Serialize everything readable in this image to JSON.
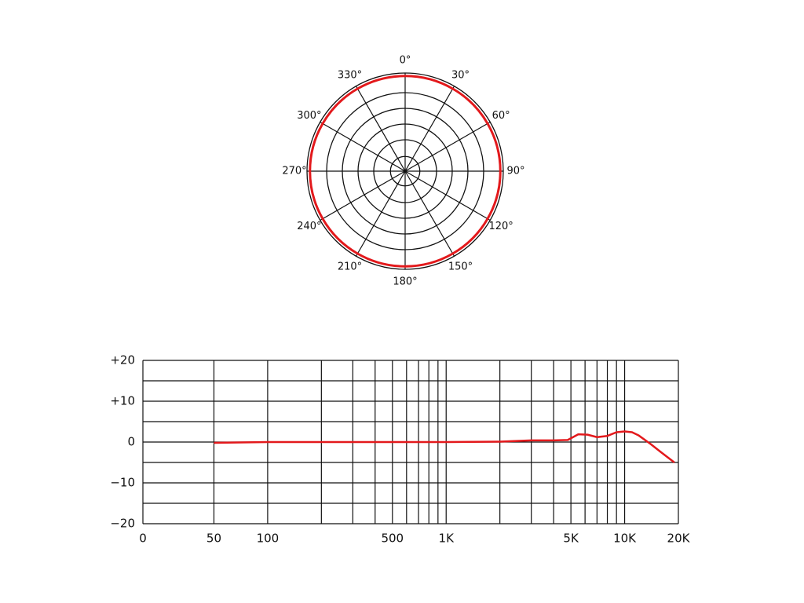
{
  "chart_data": [
    {
      "type": "polar",
      "theta": [
        0,
        30,
        60,
        90,
        120,
        150,
        180,
        210,
        240,
        270,
        300,
        330
      ],
      "series": [
        {
          "color": "#e3191c",
          "values": [
            0.97,
            0.97,
            0.97,
            0.97,
            0.97,
            0.97,
            0.97,
            0.97,
            0.97,
            0.97,
            0.97,
            0.97
          ]
        }
      ],
      "rlim": [
        0,
        1
      ],
      "rticks": [
        0.15,
        0.32,
        0.48,
        0.64,
        0.8,
        1
      ],
      "thetaticks": [
        {
          "value": 0,
          "label": "0°"
        },
        {
          "value": 30,
          "label": "30°"
        },
        {
          "value": 60,
          "label": "60°"
        },
        {
          "value": 90,
          "label": "90°"
        },
        {
          "value": 120,
          "label": "120°"
        },
        {
          "value": 150,
          "label": "150°"
        },
        {
          "value": 180,
          "label": "180°"
        },
        {
          "value": 210,
          "label": "210°"
        },
        {
          "value": 240,
          "label": "240°"
        },
        {
          "value": 270,
          "label": "270°"
        },
        {
          "value": 300,
          "label": "300°"
        },
        {
          "value": 330,
          "label": "330°"
        }
      ],
      "grid": true
    },
    {
      "type": "line",
      "x": [
        50,
        100,
        200,
        500,
        1000,
        2000,
        3000,
        4000,
        4800,
        5500,
        6200,
        7000,
        8000,
        9000,
        10000,
        11000,
        12000,
        14000,
        16000,
        19000
      ],
      "series": [
        {
          "color": "#e3191c",
          "values": [
            -0.2,
            0,
            0,
            0,
            0,
            0.1,
            0.4,
            0.4,
            0.5,
            1.9,
            1.8,
            1.2,
            1.5,
            2.4,
            2.6,
            2.4,
            1.6,
            -0.5,
            -2.5,
            -5
          ]
        }
      ],
      "log_x": true,
      "xlim": [
        20,
        20000
      ],
      "xticks": [
        {
          "value": 20,
          "label": "0"
        },
        50,
        100,
        500,
        {
          "value": 1000,
          "label": "1K"
        },
        {
          "value": 5000,
          "label": "5K"
        },
        {
          "value": 10000,
          "label": "10K"
        },
        {
          "value": 20000,
          "label": "20K"
        }
      ],
      "xgrid": [
        20,
        50,
        100,
        200,
        300,
        400,
        500,
        600,
        700,
        800,
        900,
        1000,
        2000,
        3000,
        4000,
        5000,
        6000,
        7000,
        8000,
        9000,
        10000,
        20000
      ],
      "ylim": [
        -20,
        20
      ],
      "yticks": [
        {
          "value": 20,
          "label": "+20"
        },
        {
          "value": 10,
          "label": "+10"
        },
        0,
        {
          "value": -10,
          "label": "−10"
        },
        {
          "value": -20,
          "label": "−20"
        }
      ],
      "ygrid": [
        -20,
        -15,
        -10,
        -5,
        0,
        5,
        10,
        15,
        20
      ],
      "grid": true
    }
  ]
}
